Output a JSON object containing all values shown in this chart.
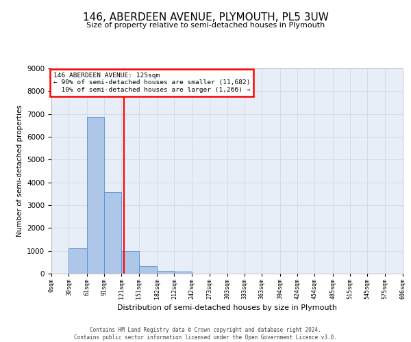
{
  "title_line1": "146, ABERDEEN AVENUE, PLYMOUTH, PL5 3UW",
  "title_line2": "Size of property relative to semi-detached houses in Plymouth",
  "xlabel": "Distribution of semi-detached houses by size in Plymouth",
  "ylabel": "Number of semi-detached properties",
  "property_label": "146 ABERDEEN AVENUE: 125sqm",
  "pct_smaller": 90,
  "count_smaller": "11,682",
  "pct_larger": 10,
  "count_larger": "1,266",
  "bin_edges": [
    0,
    30,
    61,
    91,
    121,
    151,
    182,
    212,
    242,
    273,
    303,
    333,
    363,
    394,
    424,
    454,
    485,
    515,
    545,
    575,
    606
  ],
  "bar_values": [
    0,
    1120,
    6880,
    3560,
    1000,
    320,
    130,
    90,
    0,
    0,
    0,
    0,
    0,
    0,
    0,
    0,
    0,
    0,
    0,
    0
  ],
  "bar_color": "#aec6e8",
  "bar_edge_color": "#4a90d9",
  "grid_color": "#d0d8e8",
  "background_color": "#e8eef8",
  "vline_x": 125,
  "vline_color": "red",
  "ylim": [
    0,
    9000
  ],
  "yticks": [
    0,
    1000,
    2000,
    3000,
    4000,
    5000,
    6000,
    7000,
    8000,
    9000
  ],
  "footer_line1": "Contains HM Land Registry data © Crown copyright and database right 2024.",
  "footer_line2": "Contains public sector information licensed under the Open Government Licence v3.0."
}
